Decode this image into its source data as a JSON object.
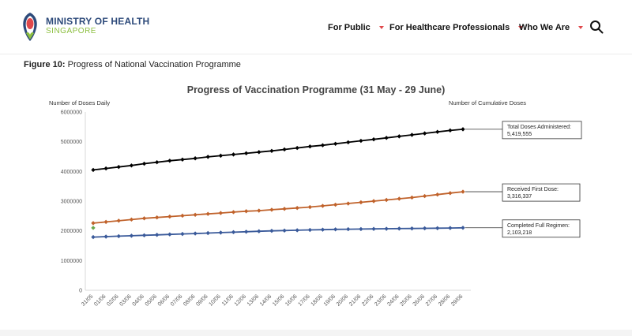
{
  "brand": {
    "name": "MINISTRY OF HEALTH",
    "sub": "SINGAPORE"
  },
  "nav": {
    "items": [
      "For Public",
      "For Healthcare Professionals",
      "Who We Are"
    ]
  },
  "figure": {
    "label": "Figure 10:",
    "caption": "Progress of National Vaccination Programme"
  },
  "colors": {
    "brand_navy": "#2d4a7a",
    "brand_green": "#8cbf3f",
    "accent_red": "#e0484b",
    "total": "#000000",
    "first": "#c0622b",
    "full": "#3a5a9a",
    "outlier": "#6aa84f"
  },
  "chart_data": {
    "type": "line",
    "title": "Progress of Vaccination Programme (31 May - 29 June)",
    "ylabel": "Number of Doses Daily",
    "ylabel_right": "Number of Cumulative Doses",
    "ylim": [
      0,
      6000000
    ],
    "yticks": [
      0,
      1000000,
      2000000,
      3000000,
      4000000,
      5000000,
      6000000
    ],
    "ytick_labels": [
      "0",
      "1000000",
      "2000000",
      "3000000",
      "4000000",
      "5000000",
      "6000000"
    ],
    "grid": false,
    "categories": [
      "31/05",
      "01/06",
      "02/06",
      "03/06",
      "04/06",
      "05/06",
      "06/06",
      "07/06",
      "08/06",
      "09/06",
      "10/06",
      "11/06",
      "12/06",
      "13/06",
      "14/06",
      "15/06",
      "16/06",
      "17/06",
      "18/06",
      "19/06",
      "20/06",
      "21/06",
      "22/06",
      "23/06",
      "24/06",
      "25/06",
      "26/06",
      "27/06",
      "28/06",
      "29/06"
    ],
    "series": [
      {
        "name": "Total Doses Administered",
        "label_value": "5,419,555",
        "color": "#000000",
        "values": [
          4050000,
          4100000,
          4150000,
          4200000,
          4260000,
          4310000,
          4360000,
          4400000,
          4440000,
          4490000,
          4530000,
          4570000,
          4610000,
          4650000,
          4690000,
          4740000,
          4790000,
          4840000,
          4880000,
          4930000,
          4980000,
          5030000,
          5080000,
          5130000,
          5180000,
          5230000,
          5280000,
          5330000,
          5380000,
          5419555
        ]
      },
      {
        "name": "Received First Dose",
        "label_value": "3,316,337",
        "color": "#c0622b",
        "values": [
          2260000,
          2300000,
          2340000,
          2380000,
          2420000,
          2450000,
          2480000,
          2510000,
          2540000,
          2570000,
          2600000,
          2630000,
          2660000,
          2680000,
          2710000,
          2740000,
          2770000,
          2800000,
          2840000,
          2880000,
          2920000,
          2960000,
          3000000,
          3040000,
          3080000,
          3120000,
          3170000,
          3220000,
          3270000,
          3316337
        ]
      },
      {
        "name": "Completed Full Regimen",
        "label_value": "2,103,218",
        "color": "#3a5a9a",
        "values": [
          1790000,
          1805000,
          1820000,
          1835000,
          1850000,
          1865000,
          1880000,
          1895000,
          1910000,
          1925000,
          1940000,
          1955000,
          1970000,
          1985000,
          2000000,
          2010000,
          2020000,
          2030000,
          2040000,
          2050000,
          2055000,
          2060000,
          2065000,
          2070000,
          2075000,
          2080000,
          2085000,
          2090000,
          2095000,
          2103218
        ]
      }
    ],
    "outlier": {
      "category": "31/05",
      "value": 2100000,
      "color": "#6aa84f"
    }
  }
}
